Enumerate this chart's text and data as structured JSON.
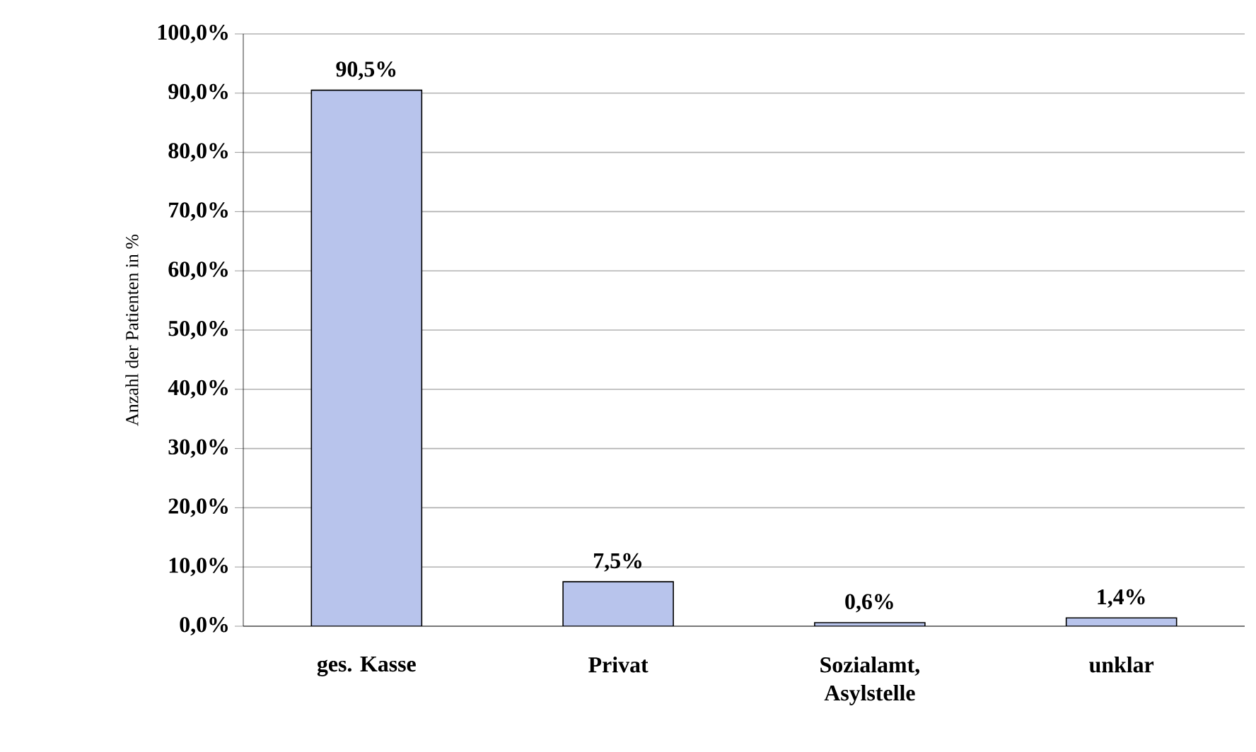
{
  "chart_data": {
    "type": "bar",
    "ylabel": "Anzahl der Patienten in %",
    "categories": [
      "ges. Kasse",
      "Privat",
      "Sozialamt, Asylstelle",
      "unklar"
    ],
    "values": [
      90.5,
      7.5,
      0.6,
      1.4
    ],
    "value_labels": [
      "90,5%",
      "7,5%",
      "0,6%",
      "1,4%"
    ],
    "color": "#b8c4ec",
    "ylim": [
      0,
      100
    ],
    "yticks": [
      {
        "value": 0,
        "label": "0,0%"
      },
      {
        "value": 10,
        "label": "10,0%"
      },
      {
        "value": 20,
        "label": "20,0%"
      },
      {
        "value": 30,
        "label": "30,0%"
      },
      {
        "value": 40,
        "label": "40,0%"
      },
      {
        "value": 50,
        "label": "50,0%"
      },
      {
        "value": 60,
        "label": "60,0%"
      },
      {
        "value": 70,
        "label": "70,0%"
      },
      {
        "value": 80,
        "label": "80,0%"
      },
      {
        "value": 90,
        "label": "90,0%"
      },
      {
        "value": 100,
        "label": "100,0%"
      }
    ],
    "grid": "y"
  }
}
